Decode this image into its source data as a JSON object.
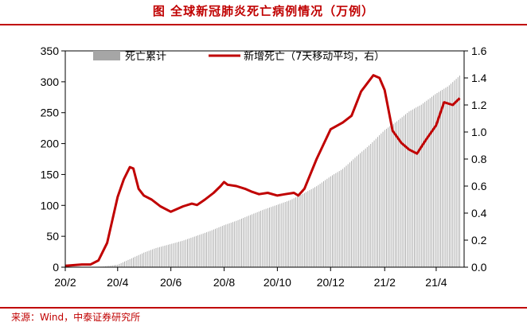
{
  "title": "图  全球新冠肺炎死亡病例情况（万例）",
  "source": "来源：Wind，中泰证券研究所",
  "chart_data": {
    "type": "bar+line",
    "x_tick_labels": [
      "20/2",
      "20/4",
      "20/6",
      "20/8",
      "20/10",
      "20/12",
      "21/2",
      "21/4"
    ],
    "left_axis": {
      "ticks": [
        0,
        50,
        100,
        150,
        200,
        250,
        300,
        350
      ],
      "ylim": [
        0,
        350
      ]
    },
    "right_axis": {
      "ticks": [
        "0.0",
        "0.2",
        "0.4",
        "0.6",
        "0.8",
        "1.0",
        "1.2",
        "1.4",
        "1.6"
      ],
      "ylim": [
        0,
        1.6
      ]
    },
    "legend": {
      "placement": "top",
      "entries": [
        "死亡累计",
        "新增死亡（7天移动平均，右）"
      ]
    },
    "colors": {
      "cumulative": "#a6a6a6",
      "daily": "#c00000",
      "accent": "#c00000"
    },
    "series": [
      {
        "name": "死亡累计",
        "axis": "left",
        "style": "bar",
        "x": [
          "2020-02-01",
          "2020-03-01",
          "2020-03-15",
          "2020-04-01",
          "2020-04-15",
          "2020-05-01",
          "2020-05-15",
          "2020-06-01",
          "2020-06-15",
          "2020-07-01",
          "2020-07-15",
          "2020-08-01",
          "2020-08-15",
          "2020-09-01",
          "2020-09-15",
          "2020-10-01",
          "2020-10-15",
          "2020-11-01",
          "2020-11-15",
          "2020-12-01",
          "2020-12-15",
          "2021-01-01",
          "2021-01-15",
          "2021-02-01",
          "2021-02-15",
          "2021-03-01",
          "2021-03-15",
          "2021-04-01",
          "2021-04-15",
          "2021-04-28"
        ],
        "values": [
          0.05,
          0.4,
          1,
          4,
          13,
          23.5,
          31,
          37.5,
          43,
          51,
          58,
          68,
          75,
          85,
          93,
          101,
          108,
          120,
          131,
          147,
          159,
          181,
          198,
          222,
          236,
          252,
          263,
          281,
          293,
          310
        ]
      },
      {
        "name": "新增死亡（7天移动平均，右）",
        "axis": "right",
        "style": "line",
        "x": [
          "2020-02-01",
          "2020-02-20",
          "2020-03-01",
          "2020-03-10",
          "2020-03-20",
          "2020-04-01",
          "2020-04-08",
          "2020-04-15",
          "2020-04-19",
          "2020-04-25",
          "2020-05-01",
          "2020-05-10",
          "2020-05-20",
          "2020-06-01",
          "2020-06-15",
          "2020-06-25",
          "2020-07-01",
          "2020-07-10",
          "2020-07-20",
          "2020-07-28",
          "2020-08-01",
          "2020-08-05",
          "2020-08-15",
          "2020-08-25",
          "2020-09-01",
          "2020-09-10",
          "2020-09-20",
          "2020-10-01",
          "2020-10-10",
          "2020-10-20",
          "2020-10-25",
          "2020-11-01",
          "2020-11-15",
          "2020-12-01",
          "2020-12-15",
          "2020-12-25",
          "2021-01-05",
          "2021-01-12",
          "2021-01-19",
          "2021-01-26",
          "2021-02-01",
          "2021-02-10",
          "2021-02-20",
          "2021-03-01",
          "2021-03-10",
          "2021-03-20",
          "2021-04-01",
          "2021-04-10",
          "2021-04-20",
          "2021-04-28"
        ],
        "values": [
          0.01,
          0.02,
          0.02,
          0.05,
          0.18,
          0.52,
          0.65,
          0.74,
          0.73,
          0.58,
          0.53,
          0.5,
          0.45,
          0.41,
          0.45,
          0.47,
          0.46,
          0.5,
          0.55,
          0.6,
          0.63,
          0.61,
          0.6,
          0.58,
          0.56,
          0.54,
          0.55,
          0.53,
          0.54,
          0.55,
          0.53,
          0.58,
          0.8,
          1.02,
          1.07,
          1.12,
          1.3,
          1.36,
          1.42,
          1.4,
          1.31,
          1.01,
          0.92,
          0.87,
          0.84,
          0.94,
          1.05,
          1.22,
          1.2,
          1.25
        ]
      }
    ]
  }
}
